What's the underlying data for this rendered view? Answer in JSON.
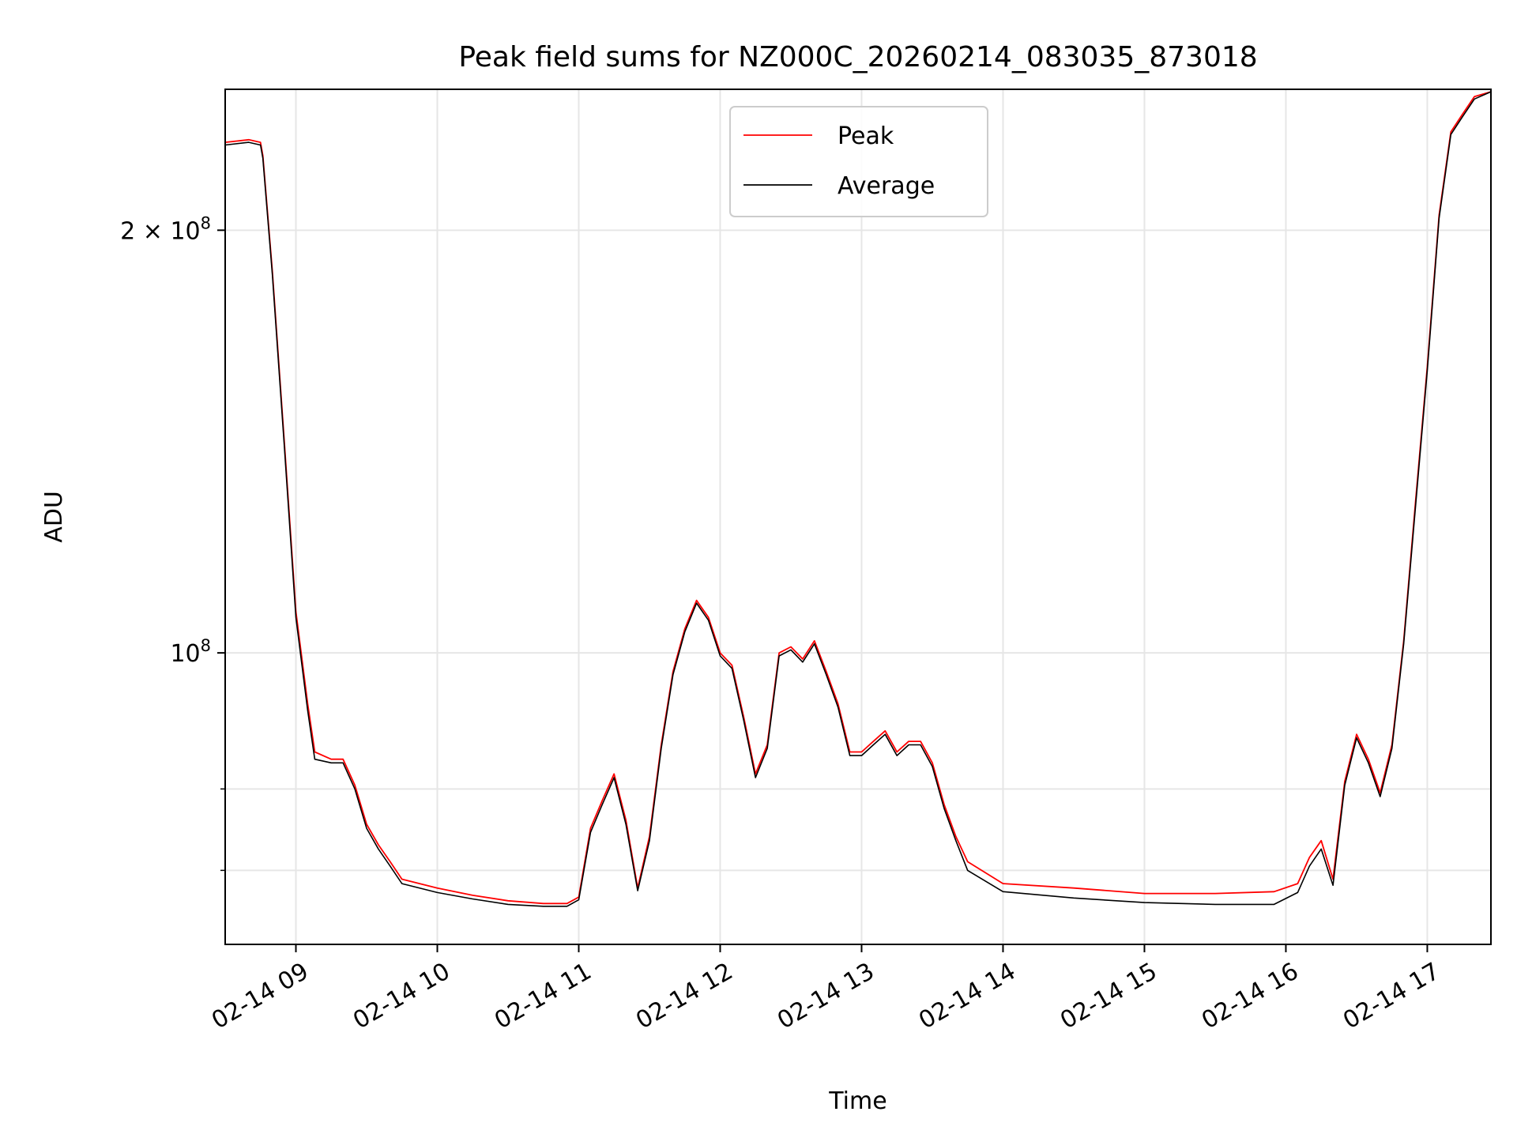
{
  "chart_data": {
    "type": "line",
    "title": "Peak field sums for NZ000C_20260214_083035_873018",
    "xlabel": "Time",
    "ylabel": "ADU",
    "x_scale": "time",
    "y_scale": "log",
    "xlim": [
      "2026-02-14 08:30",
      "2026-02-14 17:27"
    ],
    "ylim": [
      62000000,
      252000000
    ],
    "grid": true,
    "legend_position": "top-center",
    "x_tick_labels": [
      "02-14 09",
      "02-14 10",
      "02-14 11",
      "02-14 12",
      "02-14 13",
      "02-14 14",
      "02-14 15",
      "02-14 16",
      "02-14 17"
    ],
    "x_tick_values": [
      "2026-02-14 09:00",
      "2026-02-14 10:00",
      "2026-02-14 11:00",
      "2026-02-14 12:00",
      "2026-02-14 13:00",
      "2026-02-14 14:00",
      "2026-02-14 15:00",
      "2026-02-14 16:00",
      "2026-02-14 17:00"
    ],
    "y_major_ticks": [
      {
        "value": 100000000,
        "base": "10",
        "exp": "8",
        "coef": ""
      },
      {
        "value": 200000000,
        "base": "10",
        "exp": "8",
        "coef": "2 × "
      }
    ],
    "y_minor_ticks": [
      70000000,
      80000000
    ],
    "series": [
      {
        "name": "Peak",
        "color": "#ff0000",
        "x": [
          "08:30",
          "08:40",
          "08:45",
          "08:46",
          "08:50",
          "08:55",
          "09:00",
          "09:05",
          "09:08",
          "09:15",
          "09:20",
          "09:25",
          "09:30",
          "09:35",
          "09:40",
          "09:45",
          "10:00",
          "10:15",
          "10:30",
          "10:45",
          "10:55",
          "11:00",
          "11:05",
          "11:10",
          "11:15",
          "11:20",
          "11:25",
          "11:30",
          "11:35",
          "11:40",
          "11:45",
          "11:50",
          "11:55",
          "12:00",
          "12:05",
          "12:10",
          "12:15",
          "12:20",
          "12:25",
          "12:30",
          "12:35",
          "12:40",
          "12:45",
          "12:50",
          "12:55",
          "13:00",
          "13:05",
          "13:10",
          "13:15",
          "13:20",
          "13:25",
          "13:30",
          "13:35",
          "13:40",
          "13:45",
          "14:00",
          "14:30",
          "15:00",
          "15:30",
          "15:55",
          "16:05",
          "16:10",
          "16:15",
          "16:20",
          "16:25",
          "16:30",
          "16:35",
          "16:40",
          "16:45",
          "16:50",
          "16:55",
          "17:00",
          "17:05",
          "17:10",
          "17:15",
          "17:20",
          "17:27"
        ],
        "values": [
          231000000,
          232000000,
          231000000,
          226000000,
          187000000,
          142000000,
          107000000,
          92000000,
          85000000,
          84000000,
          84000000,
          80500000,
          75500000,
          73000000,
          71000000,
          69000000,
          68000000,
          67200000,
          66600000,
          66300000,
          66300000,
          67000000,
          75000000,
          78500000,
          82000000,
          76000000,
          68000000,
          74000000,
          86000000,
          97000000,
          104000000,
          109000000,
          106000000,
          100000000,
          98000000,
          90000000,
          82000000,
          86000000,
          100000000,
          101000000,
          99000000,
          102000000,
          97000000,
          92000000,
          85000000,
          85000000,
          86500000,
          88000000,
          85000000,
          86500000,
          86500000,
          83500000,
          78000000,
          74000000,
          71000000,
          68500000,
          68000000,
          67400000,
          67400000,
          67600000,
          68500000,
          71500000,
          73500000,
          69000000,
          81000000,
          87500000,
          84000000,
          79500000,
          86000000,
          102000000,
          128000000,
          160000000,
          205000000,
          235000000,
          242000000,
          249000000,
          251000000
        ]
      },
      {
        "name": "Average",
        "color": "#000000",
        "x": [
          "08:30",
          "08:40",
          "08:45",
          "08:46",
          "08:50",
          "08:55",
          "09:00",
          "09:05",
          "09:08",
          "09:15",
          "09:20",
          "09:25",
          "09:30",
          "09:35",
          "09:40",
          "09:45",
          "10:00",
          "10:15",
          "10:30",
          "10:45",
          "10:55",
          "11:00",
          "11:05",
          "11:10",
          "11:15",
          "11:20",
          "11:25",
          "11:30",
          "11:35",
          "11:40",
          "11:45",
          "11:50",
          "11:55",
          "12:00",
          "12:05",
          "12:10",
          "12:15",
          "12:20",
          "12:25",
          "12:30",
          "12:35",
          "12:40",
          "12:45",
          "12:50",
          "12:55",
          "13:00",
          "13:05",
          "13:10",
          "13:15",
          "13:20",
          "13:25",
          "13:30",
          "13:35",
          "13:40",
          "13:45",
          "14:00",
          "14:30",
          "15:00",
          "15:30",
          "15:55",
          "16:05",
          "16:10",
          "16:15",
          "16:20",
          "16:25",
          "16:30",
          "16:35",
          "16:40",
          "16:45",
          "16:50",
          "16:55",
          "17:00",
          "17:05",
          "17:10",
          "17:15",
          "17:20",
          "17:27"
        ],
        "values": [
          230000000,
          231000000,
          230000000,
          225000000,
          186000000,
          141000000,
          106000000,
          91000000,
          84000000,
          83500000,
          83500000,
          80000000,
          75000000,
          72500000,
          70500000,
          68500000,
          67500000,
          66800000,
          66200000,
          66000000,
          66000000,
          66700000,
          74500000,
          78000000,
          81500000,
          75500000,
          67700000,
          73500000,
          85500000,
          96500000,
          103500000,
          108500000,
          105500000,
          99500000,
          97500000,
          89500000,
          81500000,
          85500000,
          99500000,
          100500000,
          98500000,
          101500000,
          96500000,
          91500000,
          84500000,
          84500000,
          86000000,
          87500000,
          84500000,
          86000000,
          86000000,
          83000000,
          77500000,
          73500000,
          70000000,
          67600000,
          66900000,
          66400000,
          66200000,
          66200000,
          67500000,
          70500000,
          72500000,
          68300000,
          80500000,
          87000000,
          83500000,
          79000000,
          85500000,
          101500000,
          127000000,
          159000000,
          204000000,
          234000000,
          241000000,
          248000000,
          251000000
        ]
      }
    ]
  }
}
